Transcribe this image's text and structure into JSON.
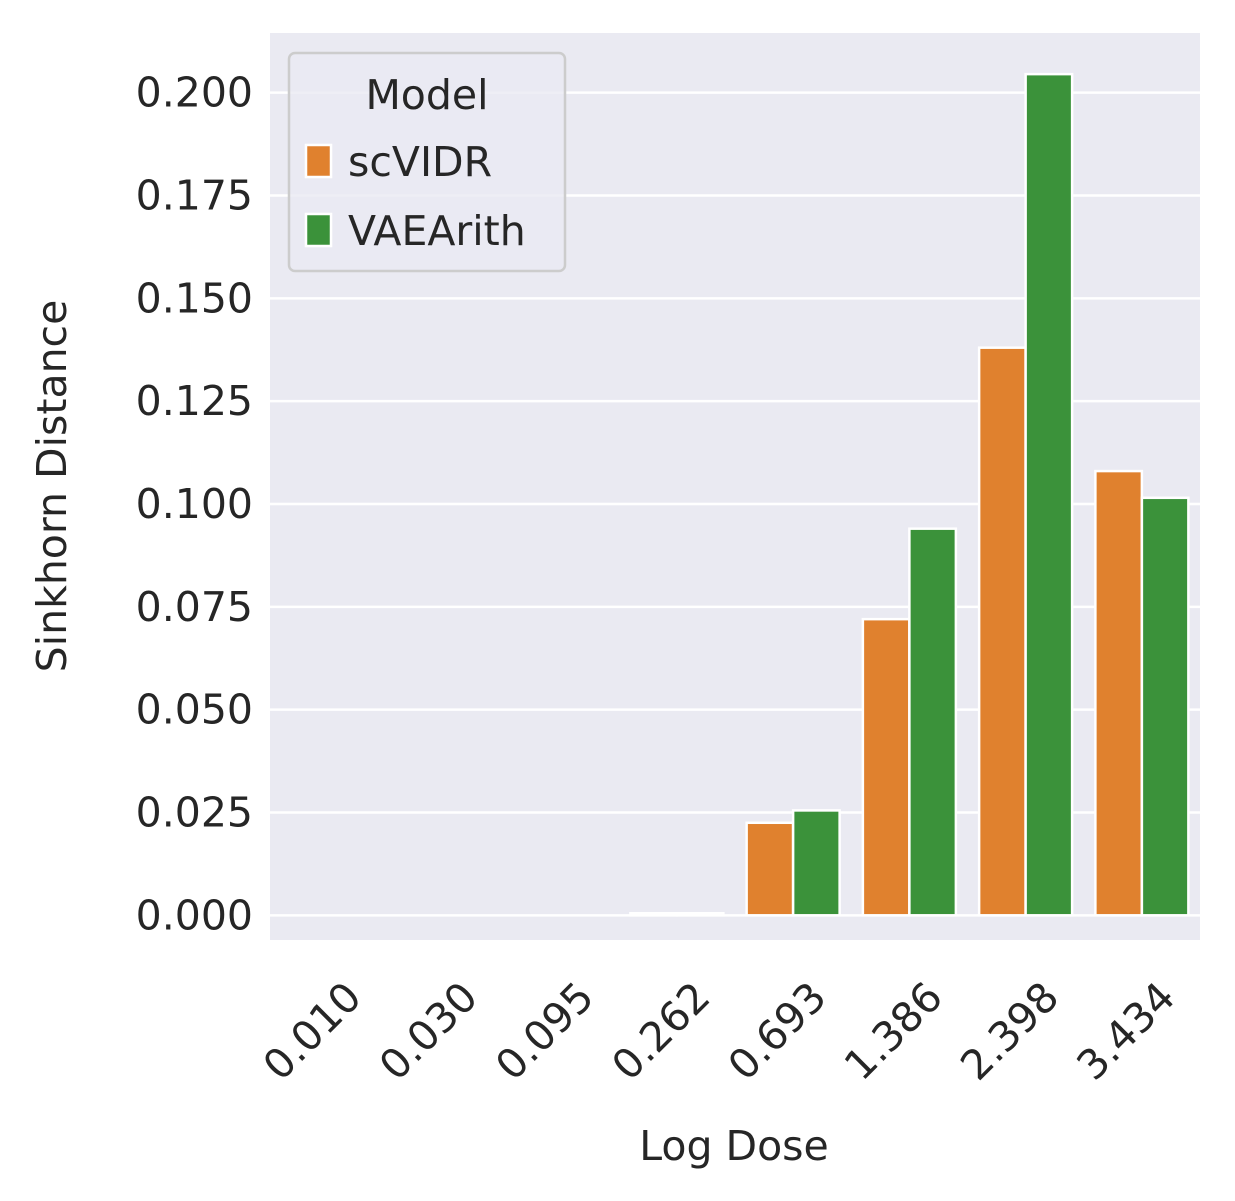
{
  "chart_data": {
    "type": "bar",
    "xlabel": "Log Dose",
    "ylabel": "Sinkhorn Distance",
    "categories": [
      "0.010",
      "0.030",
      "0.095",
      "0.262",
      "0.693",
      "1.386",
      "2.398",
      "3.434"
    ],
    "series": [
      {
        "name": "scVIDR",
        "color": "#e0812e",
        "values": [
          0.0,
          0.0,
          0.0,
          0.0005,
          0.0225,
          0.072,
          0.138,
          0.108
        ]
      },
      {
        "name": "VAEArith",
        "color": "#3b923a",
        "values": [
          0.0,
          0.0,
          0.0,
          0.0005,
          0.0255,
          0.094,
          0.2045,
          0.1015
        ]
      }
    ],
    "ylim": [
      -0.006,
      0.2145
    ],
    "yticks": [
      "0.000",
      "0.025",
      "0.050",
      "0.075",
      "0.100",
      "0.125",
      "0.150",
      "0.175",
      "0.200"
    ],
    "grid": true,
    "legend": {
      "title": "Model",
      "placement": "top-left"
    },
    "colors": {
      "background": "#eaeaf2",
      "grid": "#ffffff"
    }
  }
}
